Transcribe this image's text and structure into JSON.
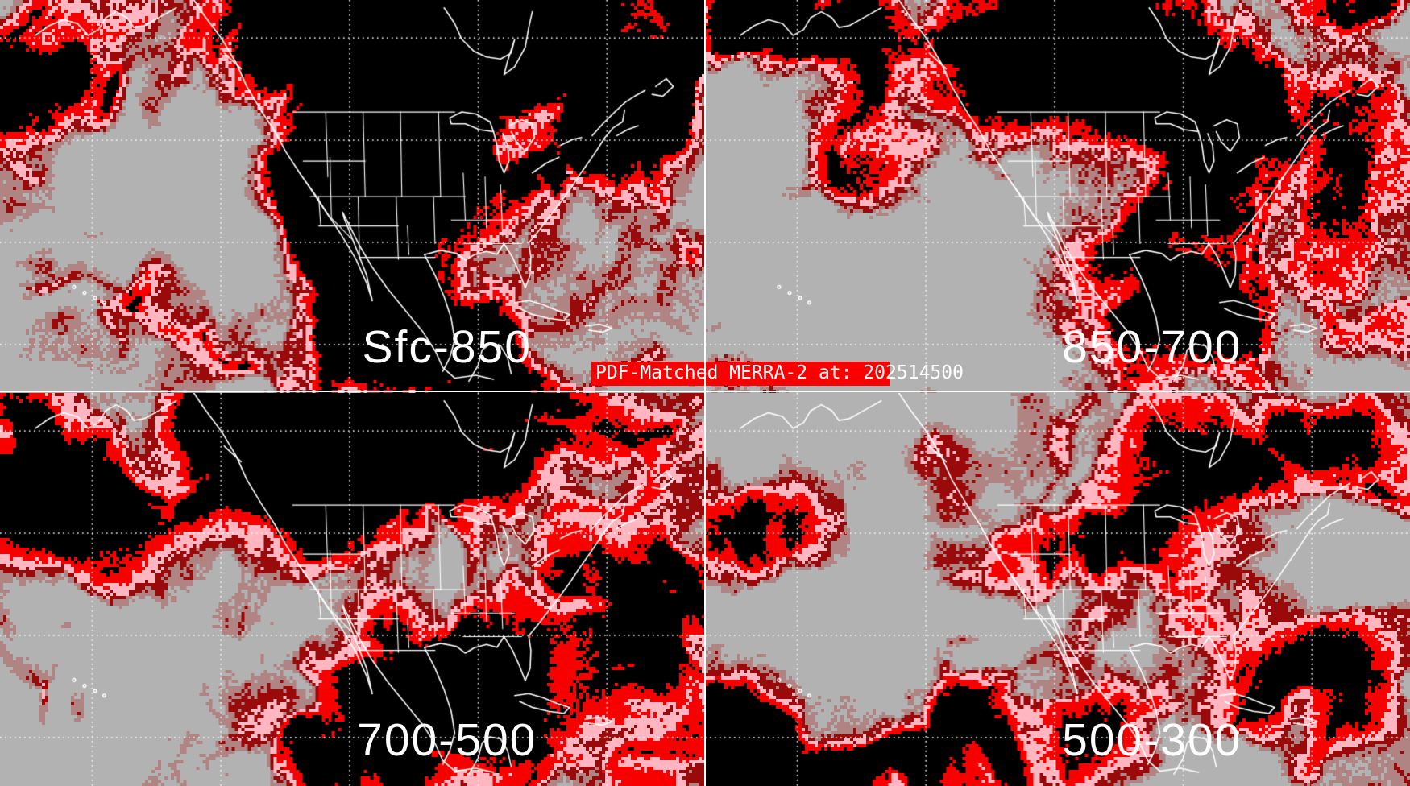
{
  "banner": {
    "text": "PDF-Matched MERRA-2 at: 202514500",
    "highlight_color": "#FA0000",
    "text_color": "#FFFFFF"
  },
  "panels": [
    {
      "id": "sfc-850",
      "label": "Sfc-850"
    },
    {
      "id": "850-700",
      "label": "850-700"
    },
    {
      "id": "700-500",
      "label": "700-500"
    },
    {
      "id": "500-300",
      "label": "500-300"
    }
  ],
  "palette": {
    "clear_gray": "#B2B2B2",
    "scattered_rosybrown": "#B08482",
    "dark_red": "#9A0A0A",
    "pink": "#FFB6C1",
    "bright_red": "#F80000",
    "overcast_black": "#000000",
    "map_outline_white": "#FFFFFF",
    "label_white": "#FFFFFF",
    "divider_white": "#FFFFFF"
  },
  "layout_hints": {
    "grid": "2x2 panels",
    "projection": "North America / North Pacific cylindrical map in each panel",
    "graticule": "white dotted latitude/longitude lines"
  }
}
